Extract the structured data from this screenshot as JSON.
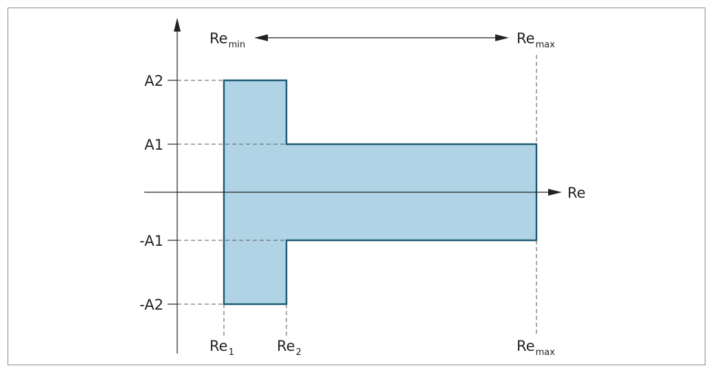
{
  "colors": {
    "region_fill": "#b0d4e6",
    "region_stroke": "#1b5a73"
  },
  "y_labels": {
    "a2": "A2",
    "a1": "A1",
    "neg_a1": "-A1",
    "neg_a2": "-A2"
  },
  "x_axis_label": "Re",
  "bottom_labels": {
    "re1": {
      "base": "Re",
      "sub": "1"
    },
    "re2": {
      "base": "Re",
      "sub": "2"
    },
    "remax": {
      "base": "Re",
      "sub": "max"
    }
  },
  "range": {
    "remin": {
      "base": "Re",
      "sub": "min"
    },
    "remax": {
      "base": "Re",
      "sub": "max"
    }
  }
}
